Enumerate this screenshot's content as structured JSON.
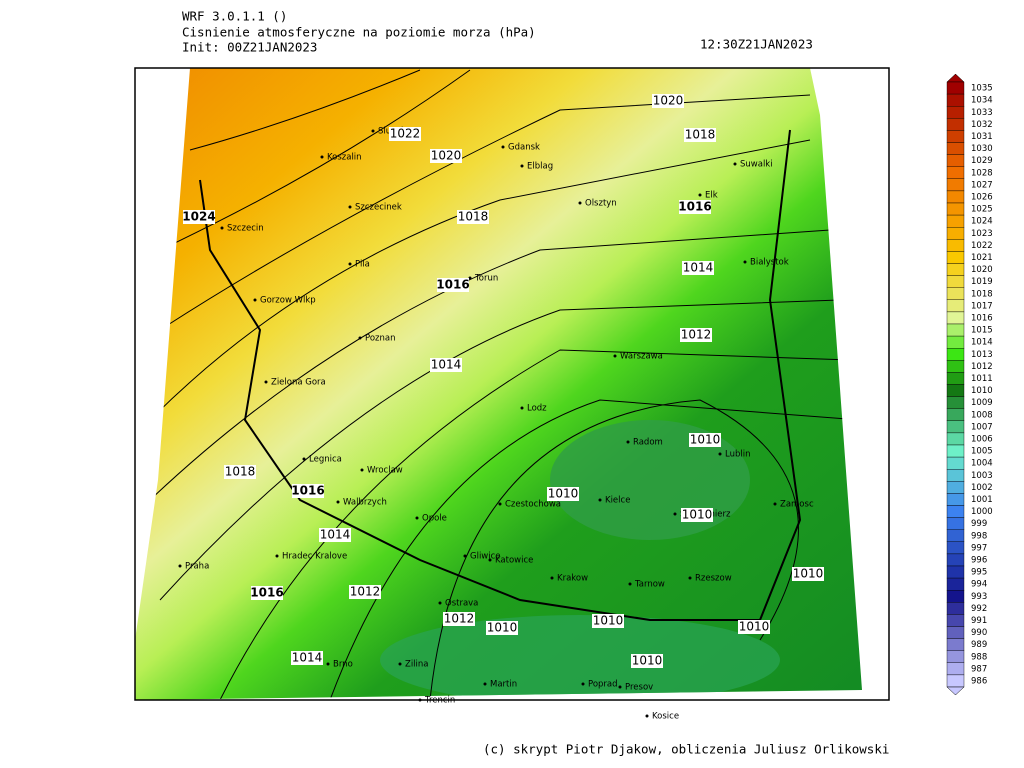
{
  "header": {
    "model": "WRF 3.0.1.1 ()",
    "title": "Cisnienie atmosferyczne na poziomie morza (hPa)",
    "init": "Init: 00Z21JAN2023",
    "valid": "12:30Z21JAN2023"
  },
  "cities": [
    "Slupsk",
    "Koszalin",
    "Gdansk",
    "Elblag",
    "Szczecinek",
    "Olsztyn",
    "Suwalki",
    "Elk",
    "Szczecin",
    "Pila",
    "Torun",
    "Bialystok",
    "Gorzow Wlkp",
    "Poznan",
    "Warszawa",
    "Zielona Gora",
    "Lodz",
    "Radom",
    "Lublin",
    "Legnica",
    "Wroclaw",
    "Walbrzych",
    "Czestochowa",
    "Kielce",
    "Sandomierz",
    "Zamosc",
    "Opole",
    "Hradec Kralove",
    "Gliwice",
    "Katowice",
    "Praha",
    "Krakow",
    "Tarnow",
    "Rzeszow",
    "Ostrava",
    "Brno",
    "Zilina",
    "Martin",
    "Poprad",
    "Presov",
    "Trencin",
    "Kosice"
  ],
  "contour_labels": [
    1020,
    1022,
    1018,
    1020,
    1024,
    1018,
    1016,
    1014,
    1016,
    1012,
    1014,
    1010,
    1018,
    1016,
    1010,
    1010,
    1014,
    1012,
    1016,
    1012,
    1010,
    1010,
    1010,
    1010,
    1010,
    1014
  ],
  "colorbar": {
    "levels": [
      1035,
      1034,
      1033,
      1032,
      1031,
      1030,
      1029,
      1028,
      1027,
      1026,
      1025,
      1024,
      1023,
      1022,
      1021,
      1020,
      1019,
      1018,
      1017,
      1016,
      1015,
      1014,
      1013,
      1012,
      1011,
      1010,
      1009,
      1008,
      1007,
      1006,
      1005,
      1004,
      1003,
      1002,
      1001,
      1000,
      999,
      998,
      997,
      996,
      995,
      994,
      993,
      992,
      991,
      990,
      989,
      988,
      987,
      986
    ]
  },
  "footer": "(c) skrypt Piotr Djakow, obliczenia Juliusz Orlikowski"
}
